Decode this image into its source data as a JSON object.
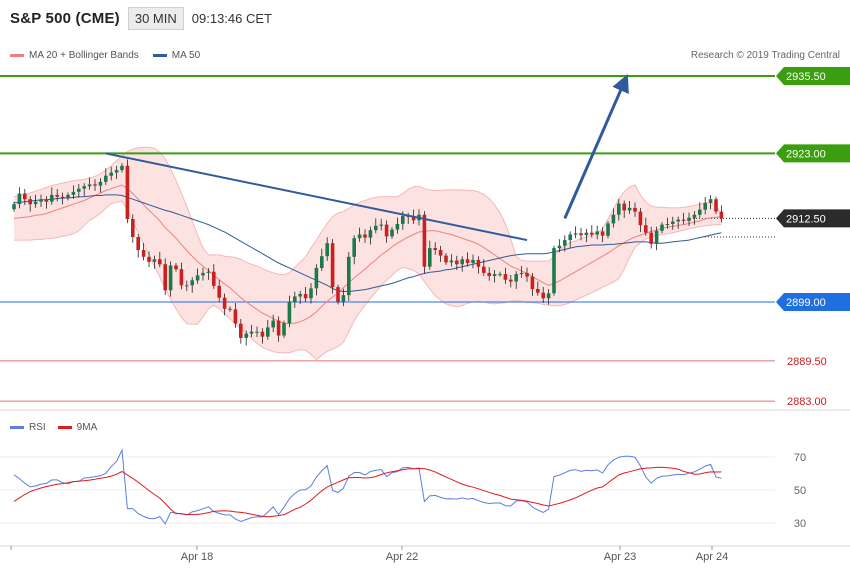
{
  "header": {
    "symbol": "S&P 500 (CME)",
    "interval": "30 MIN",
    "clock": "09:13:46 CET"
  },
  "legend": [
    {
      "label": "MA 20 + Bollinger Bands",
      "color": "#f08080"
    },
    {
      "label": "MA 50",
      "color": "#2f5b9a"
    }
  ],
  "copyright": "Research © 2019 Trading Central",
  "price_chart": {
    "type": "candlestick",
    "ylim": [
      2881.0,
      2939.0
    ],
    "levels": [
      {
        "label": "2935.50",
        "value": 2935.5,
        "color": "#3a9e0f",
        "kind": "resistance"
      },
      {
        "label": "2923.00",
        "value": 2923.0,
        "color": "#3a9e0f",
        "kind": "resistance"
      },
      {
        "label": "2912.50",
        "value": 2912.5,
        "color": "#222222",
        "kind": "last"
      },
      {
        "label": "2899.00",
        "value": 2899.0,
        "color": "#1f6fe0",
        "kind": "pivot"
      },
      {
        "label": "2889.50",
        "value": 2889.5,
        "color": "#e07070",
        "kind": "support"
      },
      {
        "label": "2883.00",
        "value": 2883.0,
        "color": "#e07070",
        "kind": "support"
      }
    ],
    "trendline": {
      "x": [
        17,
        95
      ],
      "y": [
        2923.0,
        2909.0
      ],
      "color": "#2f5b9a"
    },
    "forecast_arrow": {
      "x": [
        102,
        113
      ],
      "y": [
        2912.5,
        2934.5
      ],
      "color": "#2f5b9a"
    },
    "x_dates": [
      "Apr 18",
      "Apr 22",
      "Apr 23",
      "Apr 24"
    ],
    "closes": [
      2914.8,
      2916.5,
      2915.6,
      2914.8,
      2915.2,
      2915.5,
      2915.2,
      2916.3,
      2916.0,
      2915.8,
      2916.3,
      2916.8,
      2917.3,
      2917.7,
      2918.0,
      2917.8,
      2918.4,
      2919.4,
      2919.9,
      2920.3,
      2921.0,
      2912.4,
      2909.5,
      2907.4,
      2906.3,
      2905.5,
      2905.9,
      2905.1,
      2900.9,
      2904.9,
      2904.3,
      2901.7,
      2901.7,
      2902.5,
      2903.3,
      2903.7,
      2903.9,
      2901.6,
      2899.7,
      2897.9,
      2897.8,
      2895.5,
      2893.2,
      2893.9,
      2894.2,
      2894.2,
      2893.4,
      2894.9,
      2896.0,
      2893.6,
      2895.6,
      2899.0,
      2899.9,
      2900.3,
      2899.6,
      2901.2,
      2904.5,
      2906.4,
      2908.5,
      2901.4,
      2899.0,
      2900.1,
      2906.3,
      2909.3,
      2909.9,
      2909.4,
      2910.6,
      2911.3,
      2911.5,
      2909.6,
      2910.7,
      2911.6,
      2912.9,
      2912.8,
      2912.2,
      2913.1,
      2904.7,
      2907.7,
      2907.4,
      2906.5,
      2905.4,
      2905.7,
      2905.1,
      2905.9,
      2905.3,
      2905.8,
      2904.7,
      2903.7,
      2903.2,
      2903.5,
      2903.5,
      2902.6,
      2902.3,
      2903.5,
      2903.7,
      2903.1,
      2901.1,
      2900.5,
      2899.6,
      2900.4,
      2907.7,
      2908.1,
      2909.0,
      2909.9,
      2910.1,
      2909.8,
      2910.2,
      2909.9,
      2910.4,
      2909.7,
      2911.7,
      2913.1,
      2914.9,
      2913.8,
      2914.2,
      2913.6,
      2911.4,
      2910.2,
      2908.4,
      2910.5,
      2911.5,
      2911.6,
      2912.0,
      2912.3,
      2912.1,
      2912.6,
      2913.1,
      2913.9,
      2915.0,
      2915.6,
      2913.6,
      2912.5
    ],
    "ma20": [
      2912.5,
      2912.6,
      2912.7,
      2912.8,
      2913.0,
      2913.1,
      2913.3,
      2913.6,
      2913.9,
      2914.2,
      2914.5,
      2914.8,
      2915.1,
      2915.4,
      2915.8,
      2916.2,
      2916.6,
      2917.0,
      2917.3,
      2917.6,
      2917.9,
      2917.3,
      2916.5,
      2915.6,
      2914.7,
      2913.8,
      2913.0,
      2912.1,
      2911.0,
      2910.2,
      2909.3,
      2908.3,
      2907.3,
      2906.4,
      2905.5,
      2904.8,
      2904.1,
      2903.3,
      2902.6,
      2901.9,
      2901.3,
      2900.5,
      2899.7,
      2899.0,
      2898.4,
      2897.8,
      2897.2,
      2896.8,
      2896.3,
      2895.9,
      2895.6,
      2895.5,
      2895.6,
      2895.8,
      2896.2,
      2896.7,
      2897.4,
      2898.3,
      2899.1,
      2899.8,
      2900.5,
      2901.3,
      2902.1,
      2902.9,
      2903.6,
      2904.3,
      2905.1,
      2905.8,
      2906.6,
      2907.2,
      2907.9,
      2908.5,
      2909.0,
      2909.5,
      2909.9,
      2910.3,
      2910.4,
      2910.5,
      2910.5,
      2910.3,
      2910.1,
      2909.9,
      2909.6,
      2909.3,
      2909.0,
      2908.7,
      2908.3,
      2907.8,
      2907.2,
      2906.6,
      2906.0,
      2905.4,
      2904.8,
      2904.4,
      2904.0,
      2903.6,
      2903.1,
      2902.6,
      2902.1,
      2901.7,
      2902.0,
      2902.4,
      2902.9,
      2903.4,
      2903.9,
      2904.4,
      2904.9,
      2905.4,
      2905.9,
      2906.4,
      2906.9,
      2907.5,
      2908.1,
      2908.6,
      2909.1,
      2909.5,
      2909.8,
      2910.1,
      2910.4,
      2910.6,
      2910.9,
      2911.1,
      2911.2,
      2911.4,
      2911.5,
      2911.7,
      2911.9,
      2912.1,
      2912.4,
      2912.6,
      2912.7,
      2912.8
    ],
    "ma50": [
      2915.0,
      2915.1,
      2915.2,
      2915.3,
      2915.4,
      2915.5,
      2915.5,
      2915.6,
      2915.7,
      2915.8,
      2915.8,
      2915.9,
      2916.0,
      2916.0,
      2916.1,
      2916.2,
      2916.2,
      2916.3,
      2916.3,
      2916.3,
      2916.2,
      2915.9,
      2915.6,
      2915.3,
      2915.0,
      2914.7,
      2914.4,
      2914.1,
      2913.8,
      2913.6,
      2913.3,
      2913.0,
      2912.7,
      2912.4,
      2912.1,
      2911.8,
      2911.5,
      2911.1,
      2910.7,
      2910.3,
      2909.8,
      2909.3,
      2908.8,
      2908.3,
      2907.8,
      2907.3,
      2906.8,
      2906.3,
      2905.8,
      2905.3,
      2904.9,
      2904.5,
      2904.1,
      2903.7,
      2903.3,
      2902.9,
      2902.5,
      2902.1,
      2901.7,
      2901.2,
      2900.8,
      2900.7,
      2900.7,
      2900.8,
      2900.9,
      2901.0,
      2901.2,
      2901.4,
      2901.6,
      2901.8,
      2902.0,
      2902.3,
      2902.6,
      2902.9,
      2903.1,
      2903.4,
      2903.6,
      2903.8,
      2903.9,
      2904.0,
      2904.2,
      2904.3,
      2904.5,
      2904.7,
      2904.9,
      2905.1,
      2905.3,
      2905.5,
      2905.7,
      2905.9,
      2906.1,
      2906.3,
      2906.5,
      2906.6,
      2906.7,
      2906.8,
      2906.8,
      2906.8,
      2906.8,
      2906.9,
      2907.1,
      2907.3,
      2907.5,
      2907.7,
      2907.9,
      2908.0,
      2908.1,
      2908.2,
      2908.2,
      2908.2,
      2908.3,
      2908.3,
      2908.4,
      2908.5,
      2908.6,
      2908.7,
      2908.7,
      2908.7,
      2908.6,
      2908.5,
      2908.5,
      2908.6,
      2908.7,
      2908.8,
      2908.9,
      2909.0,
      2909.2,
      2909.4,
      2909.6,
      2909.8,
      2910.0,
      2910.2
    ],
    "bb_upper": [
      2916.0,
      2916.2,
      2916.4,
      2916.6,
      2916.9,
      2917.2,
      2917.5,
      2917.8,
      2918.0,
      2918.2,
      2918.4,
      2918.6,
      2918.7,
      2918.8,
      2919.0,
      2919.3,
      2919.7,
      2920.3,
      2921.0,
      2921.8,
      2922.6,
      2923.3,
      2923.7,
      2923.9,
      2924.0,
      2924.0,
      2923.8,
      2923.2,
      2922.1,
      2920.5,
      2918.6,
      2916.6,
      2914.4,
      2912.1,
      2909.8,
      2907.7,
      2906.6,
      2906.6,
      2906.6,
      2906.4,
      2906.3,
      2906.2,
      2905.9,
      2905.4,
      2905.1,
      2904.8,
      2904.4,
      2904.0,
      2903.7,
      2903.5,
      2903.4,
      2903.7,
      2904.6,
      2905.4,
      2906.3,
      2907.7,
      2909.0,
      2910.4,
      2911.7,
      2912.8,
      2913.4,
      2913.6,
      2914.1,
      2914.7,
      2915.1,
      2915.4,
      2915.7,
      2915.9,
      2916.0,
      2916.0,
      2916.0,
      2916.0,
      2916.5,
      2917.2,
      2917.6,
      2917.7,
      2917.3,
      2917.1,
      2917.0,
      2917.0,
      2917.1,
      2917.1,
      2917.1,
      2917.1,
      2917.0,
      2917.0,
      2916.8,
      2916.4,
      2915.7,
      2914.7,
      2913.4,
      2911.6,
      2909.2,
      2906.3,
      2905.7,
      2905.6,
      2905.6,
      2905.6,
      2905.6,
      2905.6,
      2906.4,
      2907.4,
      2908.1,
      2908.6,
      2908.9,
      2909.3,
      2909.5,
      2909.8,
      2910.2,
      2910.8,
      2912.4,
      2914.0,
      2915.6,
      2916.8,
      2917.6,
      2917.9,
      2916.3,
      2915.1,
      2914.5,
      2914.3,
      2914.3,
      2914.2,
      2914.2,
      2914.2,
      2914.3,
      2914.4,
      2914.6,
      2914.8,
      2915.0,
      2915.1,
      2914.5,
      2913.2
    ],
    "bb_lower": [
      2909.0,
      2909.0,
      2909.0,
      2909.0,
      2909.1,
      2909.1,
      2909.2,
      2909.3,
      2909.4,
      2909.6,
      2909.8,
      2910.0,
      2910.5,
      2911.4,
      2912.2,
      2912.7,
      2913.3,
      2914.1,
      2914.9,
      2915.1,
      2915.3,
      2913.8,
      2912.0,
      2910.2,
      2908.4,
      2906.6,
      2904.8,
      2903.0,
      2901.1,
      2899.4,
      2897.9,
      2896.5,
      2895.5,
      2895.4,
      2895.4,
      2896.6,
      2897.9,
      2898.5,
      2897.9,
      2897.1,
      2896.3,
      2895.5,
      2894.7,
      2893.9,
      2893.1,
      2892.3,
      2891.7,
      2891.3,
      2891.0,
      2890.8,
      2890.8,
      2890.8,
      2891.1,
      2891.3,
      2891.2,
      2890.5,
      2889.7,
      2890.4,
      2891.0,
      2891.4,
      2891.8,
      2892.5,
      2894.2,
      2896.0,
      2897.3,
      2898.5,
      2899.6,
      2900.6,
      2901.6,
      2902.5,
      2903.3,
      2904.1,
      2904.6,
      2904.4,
      2904.1,
      2903.5,
      2902.3,
      2901.1,
      2900.0,
      2899.3,
      2898.7,
      2898.4,
      2898.2,
      2898.4,
      2898.8,
      2899.0,
      2899.1,
      2899.0,
      2898.8,
      2898.7,
      2898.8,
      2898.9,
      2899.1,
      2899.2,
      2899.1,
      2898.9,
      2898.9,
      2898.8,
      2898.6,
      2898.5,
      2898.4,
      2898.4,
      2898.6,
      2898.9,
      2899.3,
      2899.7,
      2900.1,
      2900.5,
      2900.9,
      2901.4,
      2901.8,
      2902.2,
      2902.8,
      2904.3,
      2906.2,
      2907.8,
      2908.6,
      2909.2,
      2909.5,
      2909.7,
      2909.9,
      2910.0,
      2910.2,
      2910.4,
      2910.6,
      2910.8,
      2911.0,
      2911.2,
      2911.3,
      2911.4,
      2911.5,
      2911.5
    ]
  },
  "rsi_chart": {
    "type": "line",
    "legend": [
      {
        "label": "RSI",
        "color": "#5b7fe0"
      },
      {
        "label": "9MA",
        "color": "#e01b1b"
      }
    ],
    "ylim": [
      18,
      82
    ],
    "yticks": [
      "70",
      "50",
      "30"
    ],
    "rsi": [
      59.2,
      56.9,
      54.1,
      51.9,
      52.4,
      53.6,
      54.0,
      56.1,
      56.1,
      54.4,
      53.8,
      55.1,
      55.2,
      57.3,
      57.6,
      58.1,
      58.6,
      60.1,
      64.1,
      67.4,
      74.2,
      38.7,
      38.7,
      35.7,
      34.0,
      32.7,
      32.6,
      33.9,
      29.5,
      36.5,
      36.0,
      35.5,
      34.9,
      36.7,
      37.5,
      38.6,
      39.8,
      36.9,
      35.8,
      34.9,
      34.9,
      32.4,
      30.9,
      32.1,
      33.3,
      33.8,
      33.7,
      36.6,
      39.8,
      35.1,
      39.6,
      44.7,
      47.9,
      50.0,
      50.2,
      52.4,
      57.9,
      61.7,
      64.8,
      49.7,
      48.5,
      51.1,
      58.3,
      60.6,
      60.6,
      59.1,
      61.2,
      61.9,
      62.4,
      58.1,
      60.4,
      61.2,
      63.5,
      63.7,
      62.8,
      63.4,
      43.0,
      46.4,
      46.7,
      45.5,
      44.6,
      44.7,
      44.5,
      45.2,
      44.5,
      44.9,
      43.5,
      42.4,
      41.8,
      42.1,
      42.2,
      40.5,
      40.3,
      43.4,
      43.5,
      42.7,
      39.7,
      37.8,
      36.4,
      38.4,
      58.1,
      59.0,
      60.5,
      61.9,
      62.3,
      61.3,
      62.0,
      61.7,
      62.2,
      60.3,
      65.3,
      68.1,
      69.9,
      70.4,
      70.5,
      69.9,
      64.6,
      57.8,
      54.2,
      57.1,
      58.4,
      58.5,
      59.1,
      59.6,
      59.3,
      60.2,
      61.0,
      62.6,
      64.5,
      65.5,
      58.0,
      57.1
    ],
    "ma9": [
      43.1,
      45.2,
      47.3,
      49.0,
      50.2,
      51.2,
      52.1,
      52.8,
      53.5,
      53.9,
      54.4,
      55.1,
      55.4,
      55.6,
      56.0,
      56.5,
      57.1,
      57.6,
      58.4,
      59.6,
      61.2,
      59.0,
      57.0,
      54.7,
      52.2,
      49.7,
      47.3,
      45.1,
      41.9,
      38.3,
      35.7,
      35.7,
      35.1,
      35.2,
      35.2,
      35.6,
      36.3,
      37.1,
      37.3,
      37.4,
      37.2,
      36.7,
      36.4,
      36.0,
      35.3,
      34.7,
      34.0,
      33.8,
      34.1,
      34.5,
      35.1,
      36.6,
      38.3,
      39.6,
      41.5,
      43.8,
      46.7,
      49.5,
      51.9,
      53.3,
      54.7,
      56.1,
      57.4,
      57.6,
      57.6,
      57.3,
      57.5,
      58.2,
      59.4,
      60.4,
      61.1,
      61.7,
      62.3,
      62.8,
      62.9,
      63.0,
      63.0,
      62.1,
      61.0,
      59.4,
      57.8,
      56.5,
      55.0,
      53.6,
      52.5,
      51.7,
      50.7,
      49.6,
      48.6,
      47.5,
      46.7,
      45.5,
      44.5,
      44.1,
      43.8,
      43.3,
      42.5,
      41.8,
      40.9,
      40.3,
      41.1,
      41.9,
      42.9,
      44.0,
      45.3,
      46.8,
      48.4,
      49.9,
      51.2,
      51.9,
      54.3,
      56.8,
      59.1,
      60.3,
      61.1,
      62.0,
      62.8,
      63.3,
      63.4,
      63.7,
      63.8,
      63.5,
      63.2,
      62.6,
      61.3,
      60.4,
      59.6,
      59.7,
      60.4,
      61.0,
      60.9,
      61.0
    ],
    "x_dates": [
      "Apr 18",
      "Apr 22",
      "Apr 23",
      "Apr 24"
    ]
  }
}
